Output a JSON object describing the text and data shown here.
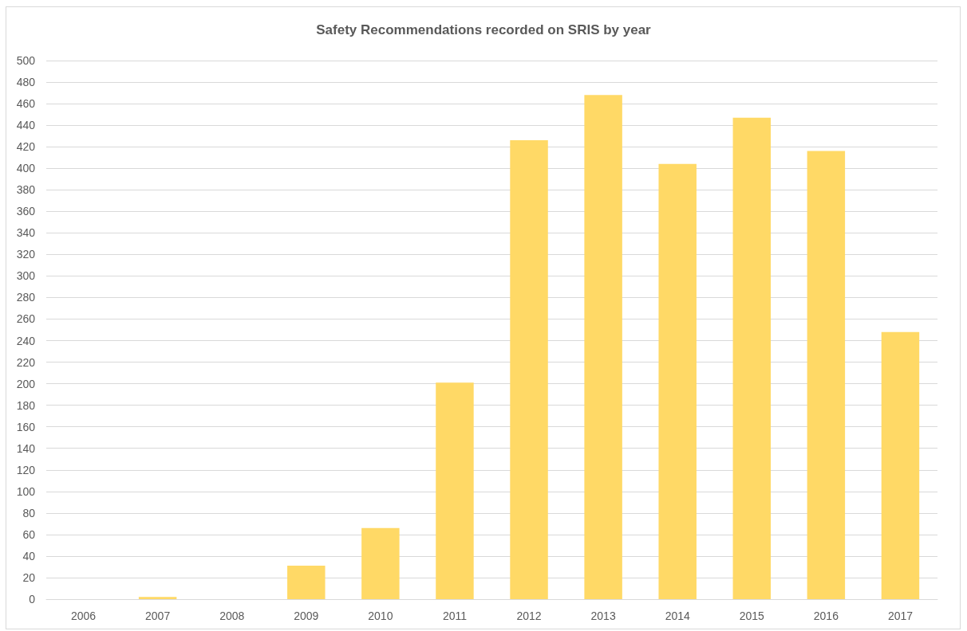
{
  "chart_data": {
    "type": "bar",
    "title": "Safety Recommendations recorded on SRIS by year",
    "categories": [
      "2006",
      "2007",
      "2008",
      "2009",
      "2010",
      "2011",
      "2012",
      "2013",
      "2014",
      "2015",
      "2016",
      "2017"
    ],
    "values": [
      0,
      2,
      0,
      31,
      66,
      201,
      426,
      468,
      404,
      447,
      416,
      248
    ],
    "color": "#ffd966",
    "ylim": [
      0,
      500
    ],
    "yticks": [
      0,
      20,
      40,
      60,
      80,
      100,
      120,
      140,
      160,
      180,
      200,
      220,
      240,
      260,
      280,
      300,
      320,
      340,
      360,
      380,
      400,
      420,
      440,
      460,
      480,
      500
    ],
    "grid": "y"
  }
}
